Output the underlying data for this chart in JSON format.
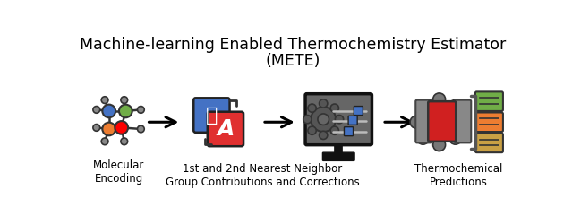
{
  "title_line1": "Machine-learning Enabled Thermochemistry Estimator",
  "title_line2": "(METE)",
  "title_fontsize": 12.5,
  "label1": "Molecular\nEncoding",
  "label2": "1st and 2nd Nearest Neighbor\nGroup Contributions and Corrections",
  "label3": "Thermochemical\nPredictions",
  "label_fontsize": 8.5,
  "bg_color": "#ffffff",
  "mol_blue": "#4472C4",
  "mol_green": "#70AD47",
  "mol_red": "#FF0000",
  "mol_orange": "#ED7D31",
  "mol_gray": "#808080",
  "translate_blue": "#4472C4",
  "translate_red": "#E03030",
  "monitor_bg": "#666666",
  "monitor_dark": "#111111",
  "slider_blue": "#4472C4",
  "gear_gray": "#7f7f7f",
  "gear_dark": "#595959",
  "output_green": "#70AD47",
  "output_orange": "#ED7D31",
  "output_tan": "#C9A044"
}
